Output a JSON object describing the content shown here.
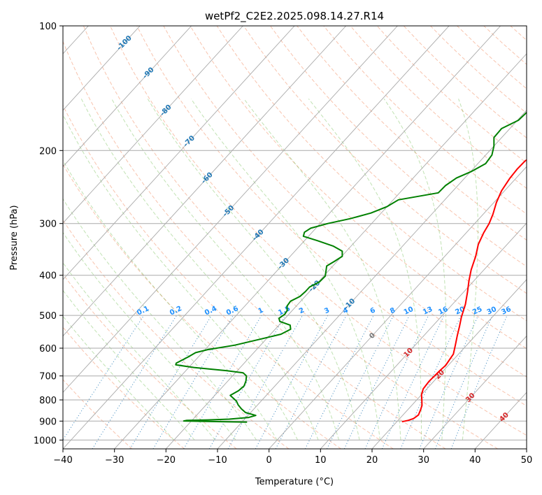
{
  "chart_data": {
    "type": "line",
    "title": "wetPf2_C2E2.2025.098.14.27.R14",
    "xlabel": "Temperature (°C)",
    "ylabel": "Pressure (hPa)",
    "xlim": [
      -40,
      50
    ],
    "ylim": [
      1050,
      100
    ],
    "y_scale": "log",
    "x_ticks": [
      "−40",
      "−30",
      "−20",
      "−10",
      "0",
      "10",
      "20",
      "30",
      "40",
      "50"
    ],
    "y_ticks": [
      {
        "p": 100,
        "label": "100"
      },
      {
        "p": 200,
        "label": "200"
      },
      {
        "p": 300,
        "label": "300"
      },
      {
        "p": 400,
        "label": "400"
      },
      {
        "p": 500,
        "label": "500"
      },
      {
        "p": 600,
        "label": "600"
      },
      {
        "p": 700,
        "label": "700"
      },
      {
        "p": 800,
        "label": "800"
      },
      {
        "p": 900,
        "label": "900"
      },
      {
        "p": 1000,
        "label": "1000"
      }
    ],
    "grid": true,
    "series": [
      {
        "color": "#ff0000",
        "points": [
          [
            21.0,
            903
          ],
          [
            22.0,
            896
          ],
          [
            22.7,
            887
          ],
          [
            23.0,
            870
          ],
          [
            22.5,
            845
          ],
          [
            22.0,
            825
          ],
          [
            21.0,
            800
          ],
          [
            20.0,
            777
          ],
          [
            19.3,
            752
          ],
          [
            19.1,
            722
          ],
          [
            19.2,
            700
          ],
          [
            19.3,
            680
          ],
          [
            19.5,
            660
          ],
          [
            19.0,
            620
          ],
          [
            17.8,
            590
          ],
          [
            16.5,
            560
          ],
          [
            15.2,
            530
          ],
          [
            14.0,
            505
          ],
          [
            12.5,
            470
          ],
          [
            10.8,
            440
          ],
          [
            9.0,
            412
          ],
          [
            7.5,
            388
          ],
          [
            6.0,
            360
          ],
          [
            4.4,
            337
          ],
          [
            3.4,
            316
          ],
          [
            2.8,
            300
          ],
          [
            1.9,
            285
          ],
          [
            0.5,
            267
          ],
          [
            -0.6,
            250
          ],
          [
            -1.2,
            233
          ],
          [
            -1.4,
            222
          ],
          [
            -1.3,
            212
          ],
          [
            -0.5,
            204
          ],
          [
            1.2,
            197
          ],
          [
            3.8,
            187
          ],
          [
            5.8,
            178
          ],
          [
            7.1,
            168
          ],
          [
            7.6,
            158
          ],
          [
            7.9,
            148
          ],
          [
            8.3,
            138
          ],
          [
            8.9,
            128
          ],
          [
            9.3,
            120
          ],
          [
            9.8,
            113
          ],
          [
            10.5,
            105
          ],
          [
            11.2,
            100
          ]
        ]
      },
      {
        "color": "#008000",
        "points": [
          [
            -9.0,
            905
          ],
          [
            -13.0,
            903
          ],
          [
            -18.0,
            901
          ],
          [
            -21.5,
            899
          ],
          [
            -21.0,
            896
          ],
          [
            -17.0,
            894
          ],
          [
            -13.0,
            890
          ],
          [
            -9.5,
            882
          ],
          [
            -8.5,
            872
          ],
          [
            -11.0,
            858
          ],
          [
            -12.5,
            840
          ],
          [
            -13.8,
            822
          ],
          [
            -14.8,
            805
          ],
          [
            -17.0,
            780
          ],
          [
            -16.2,
            760
          ],
          [
            -16.0,
            740
          ],
          [
            -16.5,
            720
          ],
          [
            -17.3,
            700
          ],
          [
            -18.5,
            688
          ],
          [
            -22.0,
            680
          ],
          [
            -29.0,
            668
          ],
          [
            -33.0,
            658
          ],
          [
            -33.2,
            652
          ],
          [
            -32.0,
            630
          ],
          [
            -31.3,
            615
          ],
          [
            -29.5,
            605
          ],
          [
            -25.0,
            590
          ],
          [
            -21.0,
            570
          ],
          [
            -18.0,
            555
          ],
          [
            -17.0,
            540
          ],
          [
            -17.8,
            528
          ],
          [
            -20.5,
            517
          ],
          [
            -21.2,
            508
          ],
          [
            -20.8,
            497
          ],
          [
            -21.0,
            486
          ],
          [
            -21.8,
            475
          ],
          [
            -22.0,
            462
          ],
          [
            -21.0,
            450
          ],
          [
            -20.8,
            438
          ],
          [
            -20.8,
            427
          ],
          [
            -19.8,
            415
          ],
          [
            -19.7,
            402
          ],
          [
            -20.5,
            390
          ],
          [
            -21.2,
            380
          ],
          [
            -20.5,
            370
          ],
          [
            -19.9,
            360
          ],
          [
            -20.8,
            350
          ],
          [
            -23.5,
            340
          ],
          [
            -27.5,
            330
          ],
          [
            -31.0,
            322
          ],
          [
            -31.5,
            315
          ],
          [
            -31.0,
            308
          ],
          [
            -28.5,
            300
          ],
          [
            -25.0,
            292
          ],
          [
            -22.0,
            283
          ],
          [
            -20.0,
            273
          ],
          [
            -19.0,
            263
          ],
          [
            -12.5,
            253
          ],
          [
            -12.4,
            243
          ],
          [
            -11.6,
            233
          ],
          [
            -9.9,
            225
          ],
          [
            -8.5,
            215
          ],
          [
            -8.8,
            205
          ],
          [
            -10.0,
            195
          ],
          [
            -11.5,
            186
          ],
          [
            -11.6,
            177
          ],
          [
            -9.8,
            169
          ],
          [
            -9.6,
            162
          ],
          [
            -9.5,
            155
          ],
          [
            -9.4,
            148
          ],
          [
            -8.9,
            140
          ],
          [
            -8.0,
            133
          ],
          [
            -6.5,
            125
          ],
          [
            -5.3,
            118
          ],
          [
            -3.8,
            110
          ],
          [
            -2.0,
            100
          ]
        ]
      }
    ],
    "dry_adiabat_labels": [
      "-100",
      "-90",
      "-80",
      "-70",
      "-60",
      "-50",
      "-40",
      "-30",
      "-20",
      "-10",
      "0",
      "10",
      "20",
      "30",
      "40"
    ],
    "mixing_ratio_labels": [
      "0.1",
      "0.2",
      "0.4",
      "0.6",
      "1",
      "1.5",
      "2",
      "3",
      "4",
      "6",
      "8",
      "10",
      "13",
      "16",
      "20",
      "25",
      "30",
      "36"
    ]
  }
}
